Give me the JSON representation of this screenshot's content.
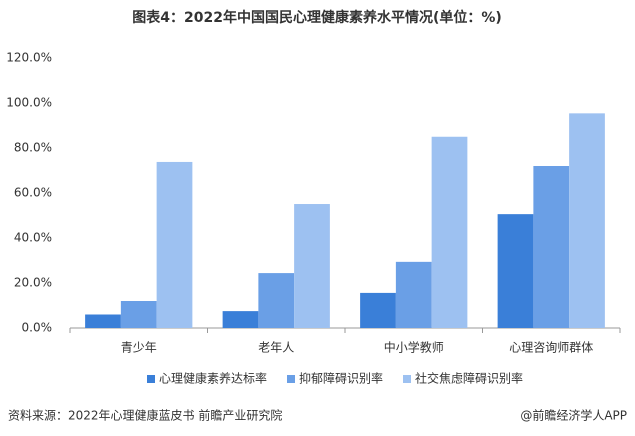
{
  "chart_data": {
    "type": "bar",
    "title": "图表4：2022年中国国民心理健康素养水平情况(单位：%)",
    "categories": [
      "青少年",
      "老年人",
      "中小学教师",
      "心理咨询师群体"
    ],
    "series": [
      {
        "name": "心理健康素养达标率",
        "color": "#3a7fd8",
        "values": [
          6,
          7.5,
          15.6,
          50.6
        ]
      },
      {
        "name": "抑郁障碍识别率",
        "color": "#6a9fe6",
        "values": [
          12,
          24.4,
          29.4,
          72
        ]
      },
      {
        "name": "社交焦虑障碍识别率",
        "color": "#9dc1f1",
        "values": [
          73.8,
          55.1,
          85,
          95.4
        ]
      }
    ],
    "ylim": [
      0,
      120
    ],
    "yticks": [
      {
        "value": 0,
        "label": "0.0%"
      },
      {
        "value": 20,
        "label": "20.0%"
      },
      {
        "value": 40,
        "label": "40.0%"
      },
      {
        "value": 60,
        "label": "60.0%"
      },
      {
        "value": 80,
        "label": "80.0%"
      },
      {
        "value": 100,
        "label": "100.0%"
      },
      {
        "value": 120,
        "label": "120.0%"
      }
    ],
    "grid": false,
    "legend": "bottom",
    "source": "资料来源：2022年心理健康蓝皮书 前瞻产业研究院",
    "credit": "@前瞻经济学人APP"
  }
}
